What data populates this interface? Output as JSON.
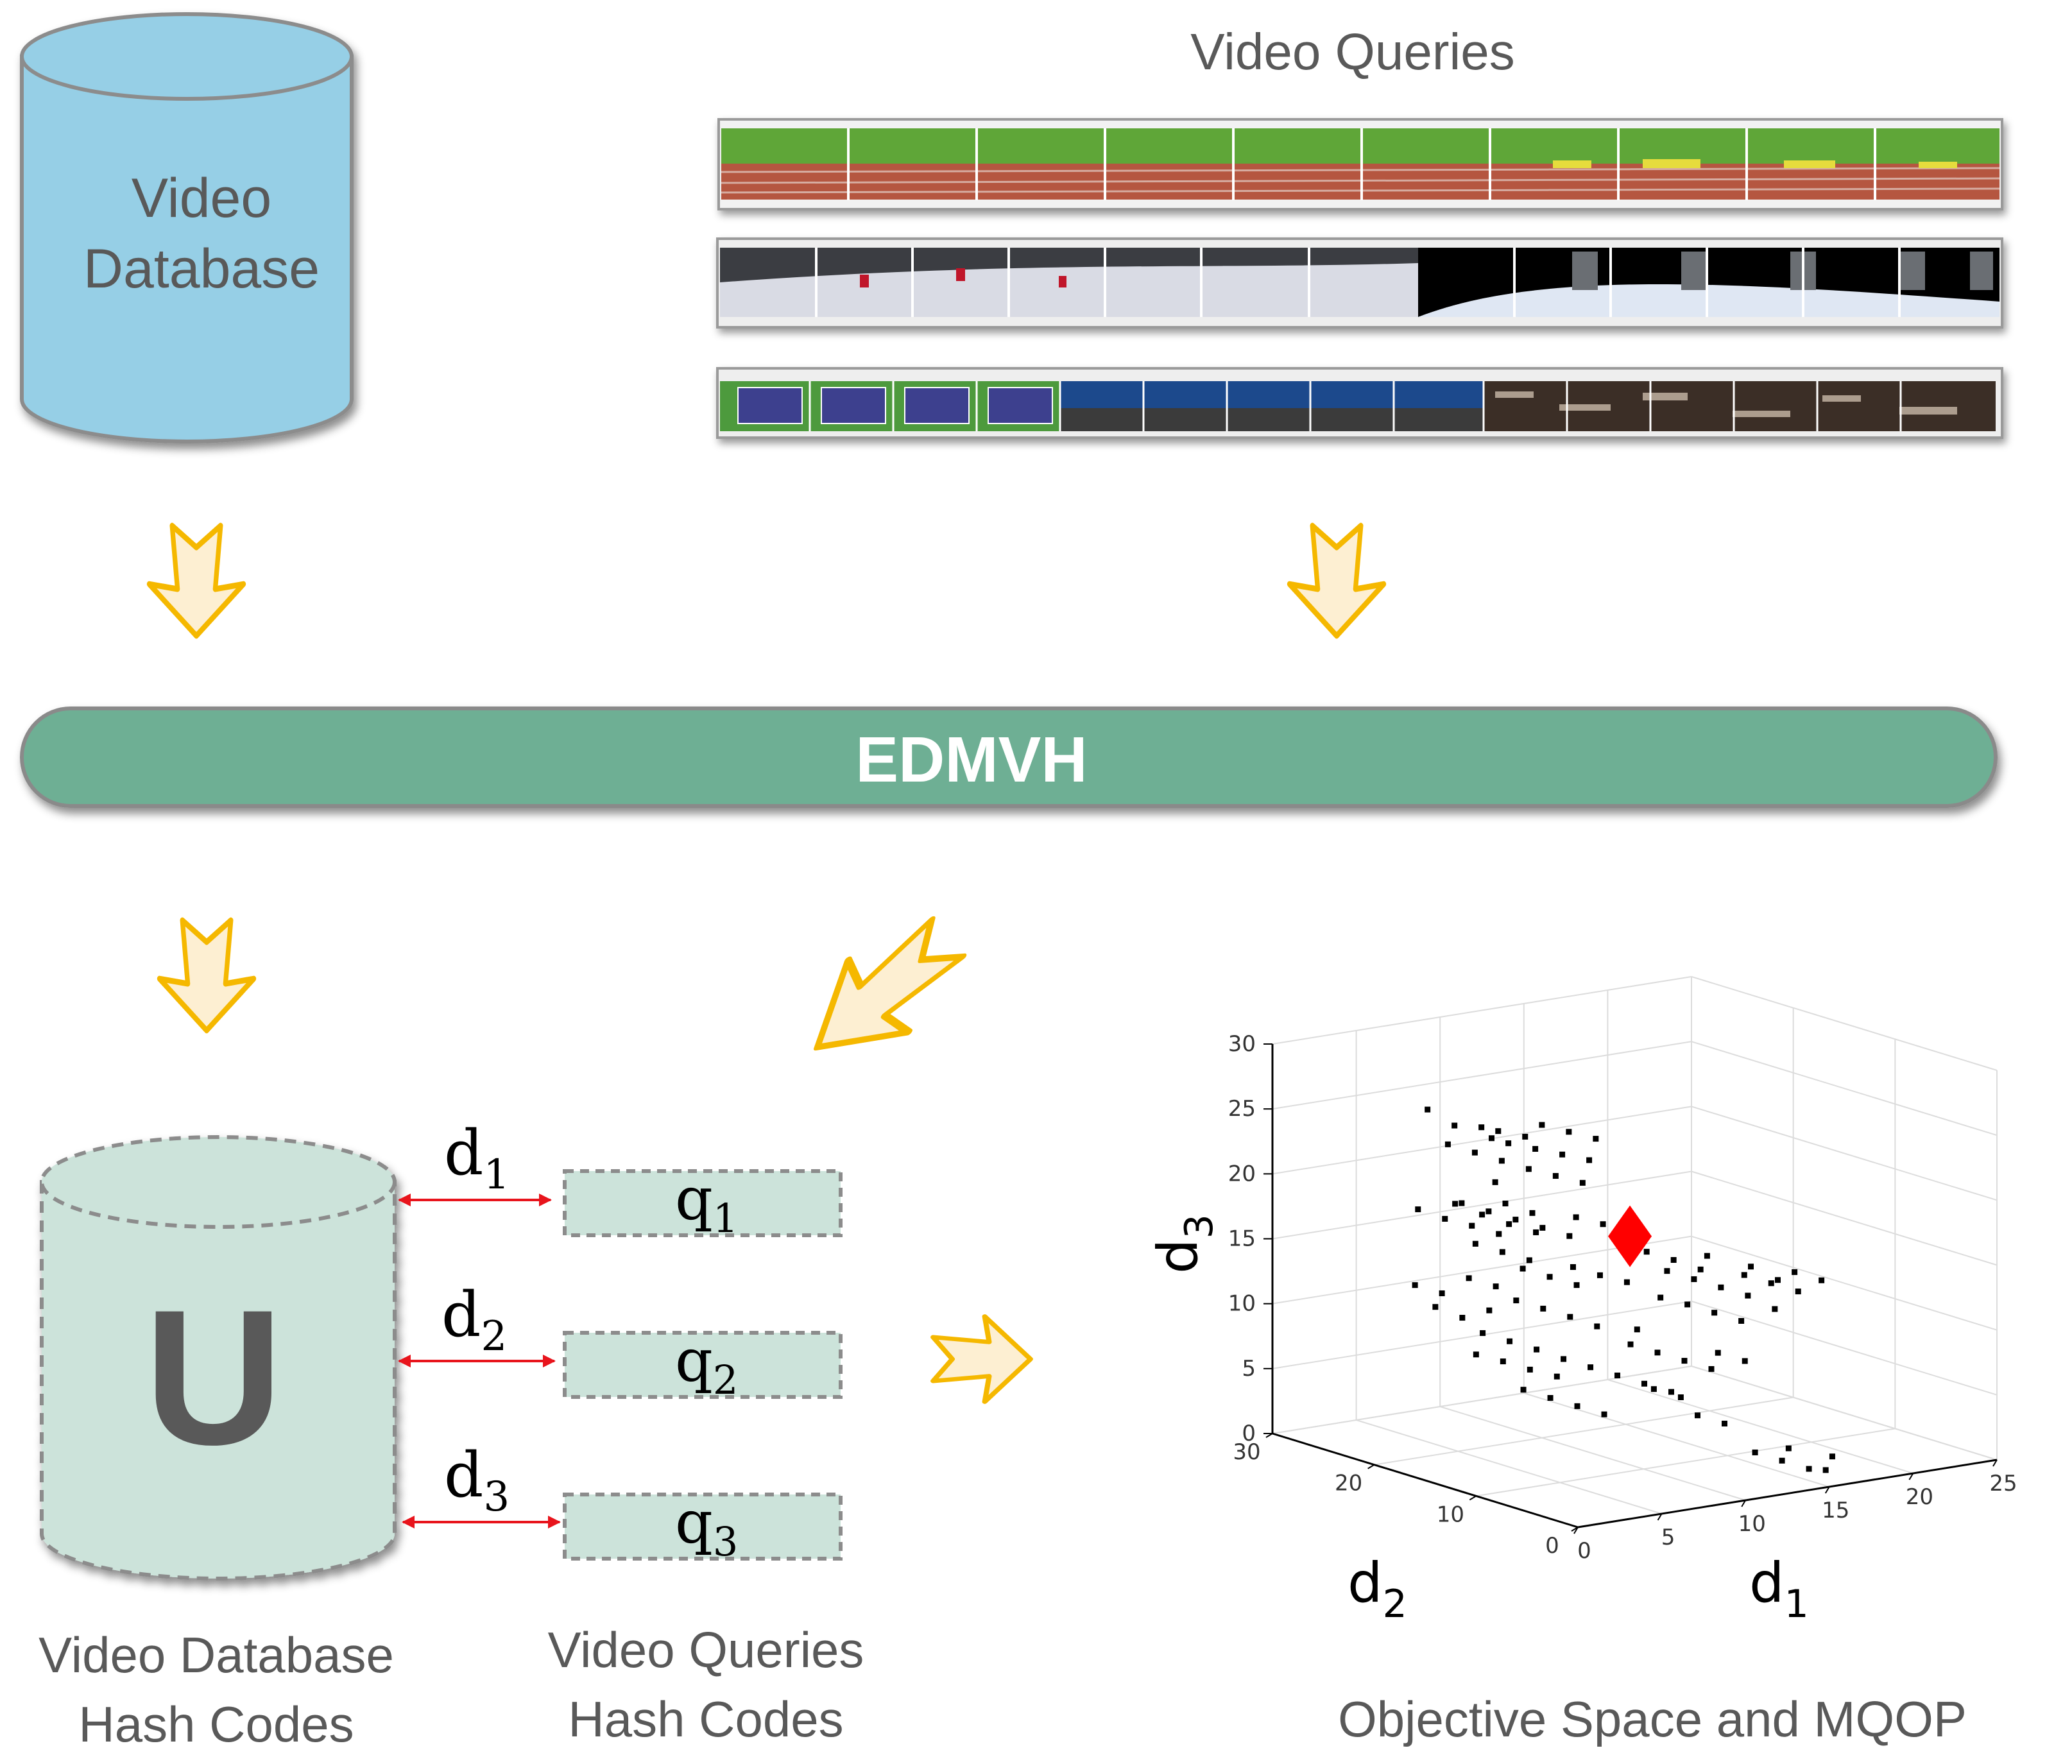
{
  "db": {
    "line1": "Video",
    "line2": "Database"
  },
  "queries_title": "Video Queries",
  "edmvh_label": "EDMVH",
  "u_label": "U",
  "distances": [
    {
      "d": "d",
      "sub": "1"
    },
    {
      "d": "d",
      "sub": "2"
    },
    {
      "d": "d",
      "sub": "3"
    }
  ],
  "query_codes": [
    {
      "q": "q",
      "sub": "1"
    },
    {
      "q": "q",
      "sub": "2"
    },
    {
      "q": "q",
      "sub": "3"
    }
  ],
  "captions": {
    "db_hash_line1": "Video Database",
    "db_hash_line2": "Hash Codes",
    "q_hash_line1": "Video Queries",
    "q_hash_line2": "Hash Codes",
    "objective": "Objective Space and MQOP"
  },
  "chart_data": {
    "type": "scatter",
    "projection": "3d",
    "xlabel": "d",
    "xlabel_sub": "1",
    "ylabel": "d",
    "ylabel_sub": "2",
    "zlabel": "d",
    "zlabel_sub": "3",
    "x_ticks": [
      "0",
      "5",
      "10",
      "15",
      "20",
      "25"
    ],
    "y_ticks": [
      "0",
      "10",
      "20",
      "30"
    ],
    "z_ticks": [
      "0",
      "5",
      "10",
      "15",
      "20",
      "25",
      "30"
    ],
    "xlim": [
      0,
      25
    ],
    "ylim": [
      0,
      30
    ],
    "zlim": [
      0,
      30
    ],
    "grid": true,
    "points": [
      [
        5,
        23,
        25.6
      ],
      [
        6,
        22,
        24.4
      ],
      [
        7,
        20,
        23.7
      ],
      [
        8,
        20,
        23.1
      ],
      [
        9,
        19,
        22.7
      ],
      [
        10,
        18,
        22.3
      ],
      [
        11,
        17,
        21.9
      ],
      [
        7,
        21,
        24.3
      ],
      [
        8,
        21,
        23.8
      ],
      [
        9,
        20,
        23.4
      ],
      [
        6,
        20,
        22.8
      ],
      [
        7,
        19,
        22.2
      ],
      [
        10,
        20,
        24.1
      ],
      [
        11,
        19,
        23.6
      ],
      [
        12,
        18,
        23.1
      ],
      [
        5,
        21,
        23.4
      ],
      [
        8,
        18,
        21.6
      ],
      [
        9,
        17,
        21.1
      ],
      [
        10,
        16,
        20.6
      ],
      [
        6,
        18,
        21.0
      ],
      [
        3,
        17,
        20.2
      ],
      [
        4,
        16,
        19.4
      ],
      [
        5,
        15,
        18.7
      ],
      [
        6,
        14,
        18.1
      ],
      [
        4,
        18,
        19.8
      ],
      [
        5,
        17,
        19.2
      ],
      [
        6,
        16,
        18.6
      ],
      [
        7,
        15,
        18.0
      ],
      [
        2,
        19,
        19.5
      ],
      [
        3,
        18,
        18.8
      ],
      [
        4,
        17,
        18.3
      ],
      [
        5,
        16,
        17.7
      ],
      [
        8,
        14,
        17.4
      ],
      [
        7,
        16,
        18.9
      ],
      [
        6,
        17,
        19.6
      ],
      [
        3,
        15,
        17.6
      ],
      [
        4,
        14,
        17.0
      ],
      [
        5,
        13,
        16.4
      ],
      [
        9,
        15,
        18.4
      ],
      [
        10,
        14,
        17.9
      ],
      [
        4,
        12,
        16.2
      ],
      [
        5,
        11,
        15.6
      ],
      [
        6,
        10,
        15.0
      ],
      [
        7,
        12,
        15.7
      ],
      [
        8,
        11,
        15.1
      ],
      [
        9,
        10,
        14.6
      ],
      [
        2,
        14,
        15.4
      ],
      [
        3,
        13,
        14.8
      ],
      [
        3,
        11,
        14.2
      ],
      [
        4,
        10,
        13.6
      ],
      [
        5,
        9,
        13.0
      ],
      [
        6,
        8,
        12.3
      ],
      [
        2,
        12,
        13.4
      ],
      [
        1,
        13,
        12.8
      ],
      [
        1,
        15,
        14.2
      ],
      [
        0,
        16,
        14.8
      ],
      [
        0,
        14,
        13.6
      ],
      [
        1,
        11,
        12.1
      ],
      [
        2,
        10,
        11.5
      ],
      [
        3,
        9,
        10.9
      ],
      [
        12,
        11,
        14.6
      ],
      [
        13,
        10,
        14.0
      ],
      [
        14,
        9,
        13.4
      ],
      [
        15,
        8,
        12.8
      ],
      [
        12,
        13,
        15.6
      ],
      [
        13,
        12,
        15.0
      ],
      [
        14,
        11,
        14.3
      ],
      [
        16,
        10,
        13.7
      ],
      [
        15,
        12,
        14.9
      ],
      [
        17,
        9,
        13.1
      ],
      [
        18,
        8,
        12.5
      ],
      [
        16,
        7,
        11.8
      ],
      [
        14,
        7,
        11.3
      ],
      [
        13,
        8,
        11.9
      ],
      [
        12,
        9,
        12.5
      ],
      [
        11,
        10,
        13.0
      ],
      [
        17,
        11,
        13.9
      ],
      [
        19,
        10,
        13.3
      ],
      [
        20,
        9,
        12.7
      ],
      [
        18,
        10,
        12.9
      ],
      [
        4,
        8,
        10.2
      ],
      [
        5,
        7,
        9.6
      ],
      [
        6,
        6,
        9.0
      ],
      [
        3,
        7,
        9.3
      ],
      [
        7,
        5,
        8.4
      ],
      [
        8,
        4,
        7.8
      ],
      [
        2,
        8,
        9.8
      ],
      [
        1,
        9,
        10.4
      ],
      [
        8,
        8,
        10.5
      ],
      [
        9,
        7,
        9.9
      ],
      [
        10,
        6,
        9.3
      ],
      [
        9,
        9,
        11.2
      ],
      [
        11,
        5,
        8.7
      ],
      [
        12,
        6,
        9.5
      ],
      [
        13,
        5,
        8.9
      ],
      [
        0,
        10,
        10.9
      ],
      [
        1,
        7,
        8.7
      ],
      [
        2,
        6,
        8.1
      ],
      [
        3,
        5,
        7.5
      ],
      [
        4,
        4,
        6.9
      ],
      [
        14,
        3,
        1.5
      ],
      [
        15,
        2,
        0.9
      ],
      [
        16,
        2,
        0.6
      ],
      [
        13,
        4,
        2.1
      ],
      [
        17,
        3,
        1.2
      ],
      [
        15,
        4,
        2.0
      ],
      [
        12,
        8,
        4.2
      ],
      [
        13,
        7,
        3.6
      ],
      [
        10,
        9,
        6.4
      ],
      [
        11,
        8,
        5.8
      ]
    ],
    "highlight": {
      "point": [
        11,
        13,
        17
      ],
      "color": "#ff0000",
      "marker": "diamond"
    }
  }
}
